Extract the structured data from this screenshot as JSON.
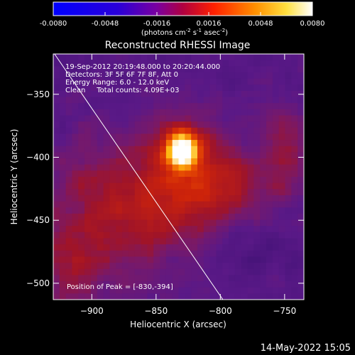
{
  "colorbar": {
    "ticks": [
      "-0.0080",
      "-0.0048",
      "-0.0016",
      "0.0016",
      "0.0048",
      "0.0080"
    ],
    "range": [
      -0.008,
      0.008
    ],
    "unit_main": "(photons cm",
    "unit_exp1": "-2",
    "unit_mid": " s",
    "unit_exp2": "-1",
    "unit_mid2": " asec",
    "unit_exp3": "-2",
    "unit_end": ")"
  },
  "chart_data": {
    "type": "heatmap",
    "title": "Reconstructed RHESSI Image",
    "xlabel": "Heliocentric X (arcsec)",
    "ylabel": "Heliocentric Y (arcsec)",
    "xlim": [
      -930,
      -735
    ],
    "ylim": [
      -513,
      -318
    ],
    "x_ticks": [
      -900,
      -850,
      -800,
      -750
    ],
    "y_ticks": [
      -350,
      -400,
      -450,
      -500
    ],
    "x_tick_labels": [
      "−900",
      "−850",
      "−800",
      "−750"
    ],
    "y_tick_labels": [
      "−350",
      "−400",
      "−450",
      "−500"
    ],
    "annotations": [
      "19-Sep-2012 20:19:48.000 to 20:20:44.000",
      "Detectors: 3F 5F 6F 7F 8F, Att 0",
      "Energy Range: 6.0 - 12.0 keV",
      "Clean     Total counts: 4.09E+03"
    ],
    "peak_label": "Position of Peak = [-830,-394]",
    "peak": [
      -830,
      -394
    ],
    "limb_line": [
      [
        -929,
        -318
      ],
      [
        -798,
        -513
      ]
    ]
  },
  "footer": {
    "timestamp": "14-May-2022 15:05"
  }
}
